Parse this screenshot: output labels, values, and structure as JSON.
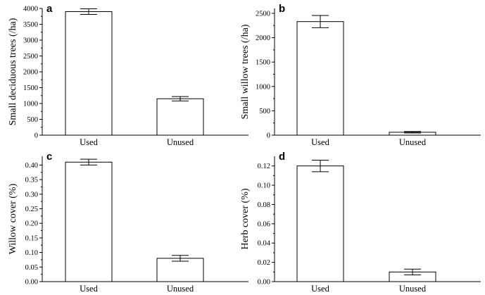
{
  "chart_data": [
    {
      "panel": "a",
      "type": "bar",
      "categories": [
        "Used",
        "Unused"
      ],
      "values": [
        3900,
        1150
      ],
      "errors": [
        90,
        70
      ],
      "ylabel": "Small deciduous trees (/ha)",
      "ylim": [
        0,
        4000
      ],
      "yticks": [
        0,
        500,
        1000,
        1500,
        2000,
        2500,
        3000,
        3500,
        4000
      ],
      "ytick_labels": [
        "0",
        "500",
        "1000",
        "1500",
        "2000",
        "2500",
        "3000",
        "3500",
        "4000"
      ]
    },
    {
      "panel": "b",
      "type": "bar",
      "categories": [
        "Used",
        "Unused"
      ],
      "values": [
        2330,
        60
      ],
      "errors": [
        125,
        15
      ],
      "ylabel": "Small willow trees (/ha)",
      "ylim": [
        0,
        2600
      ],
      "yticks": [
        0,
        500,
        1000,
        1500,
        2000,
        2500
      ],
      "ytick_labels": [
        "0",
        "500",
        "1000",
        "1500",
        "2000",
        "2500"
      ]
    },
    {
      "panel": "c",
      "type": "bar",
      "categories": [
        "Used",
        "Unused"
      ],
      "values": [
        0.41,
        0.08
      ],
      "errors": [
        0.01,
        0.01
      ],
      "ylabel": "Willow cover (%)",
      "ylim": [
        0,
        0.43
      ],
      "yticks": [
        0,
        0.05,
        0.1,
        0.15,
        0.2,
        0.25,
        0.3,
        0.35,
        0.4
      ],
      "ytick_labels": [
        "0.00",
        "0.05",
        "0.10",
        "0.15",
        "0.20",
        "0.25",
        "0.30",
        "0.35",
        "0.40"
      ]
    },
    {
      "panel": "d",
      "type": "bar",
      "categories": [
        "Used",
        "Unused"
      ],
      "values": [
        0.12,
        0.01
      ],
      "errors": [
        0.006,
        0.003
      ],
      "ylabel": "Herb cover (%)",
      "ylim": [
        0,
        0.13
      ],
      "yticks": [
        0,
        0.02,
        0.04,
        0.06,
        0.08,
        0.1,
        0.12
      ],
      "ytick_labels": [
        "0.00",
        "0.02",
        "0.04",
        "0.06",
        "0.08",
        "0.10",
        "0.12"
      ]
    }
  ]
}
